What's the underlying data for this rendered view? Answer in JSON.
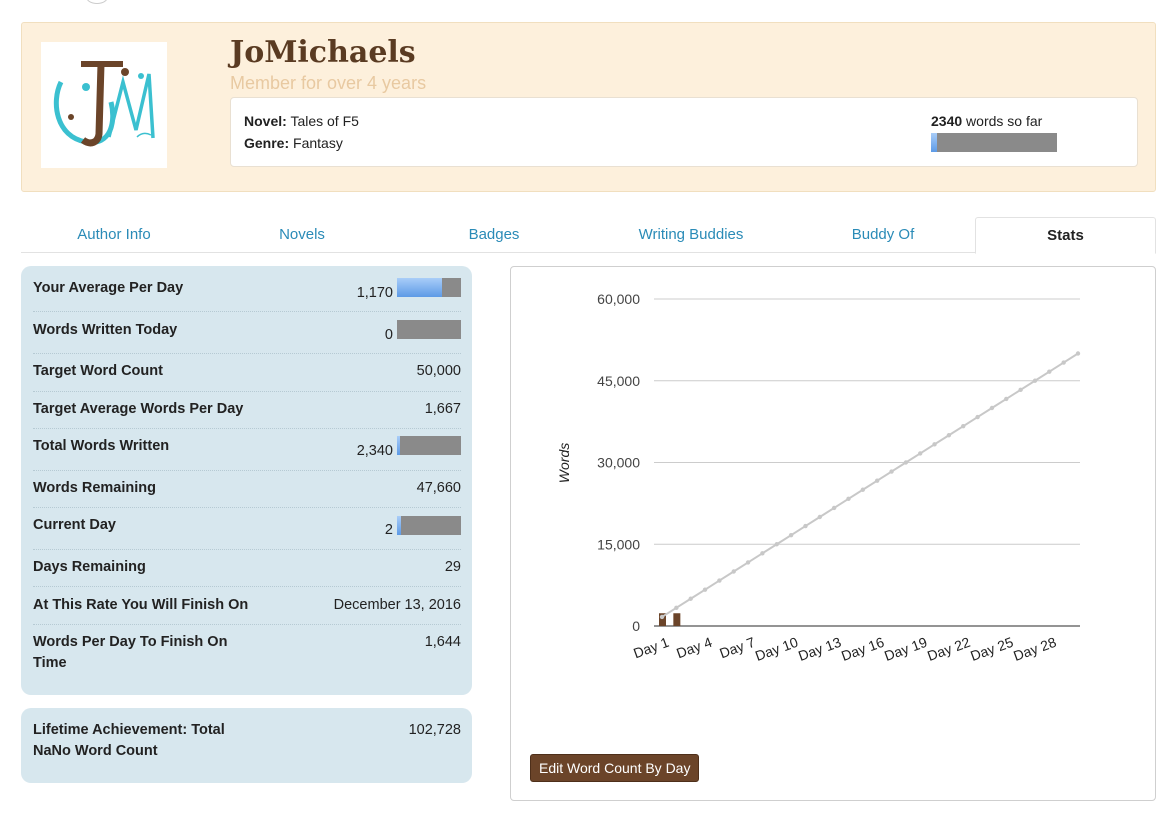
{
  "profile": {
    "username": "JoMichaels",
    "member_since": "Member for over 4 years",
    "novel_label": "Novel:",
    "novel_title": "Tales of F5",
    "genre_label": "Genre:",
    "genre": "Fantasy",
    "words_count": "2340",
    "words_suffix": "words so far",
    "words_progress": 0.047
  },
  "tabs": [
    {
      "label": "Author Info"
    },
    {
      "label": "Novels"
    },
    {
      "label": "Badges"
    },
    {
      "label": "Writing Buddies"
    },
    {
      "label": "Buddy Of"
    },
    {
      "label": "Stats",
      "active": true
    }
  ],
  "stats": [
    {
      "label": "Your Average Per Day",
      "value": "1,170",
      "progress": 0.7
    },
    {
      "label": "Words Written Today",
      "value": "0",
      "progress": 0.0
    },
    {
      "label": "Target Word Count",
      "value": "50,000"
    },
    {
      "label": "Target Average Words Per Day",
      "value": "1,667"
    },
    {
      "label": "Total Words Written",
      "value": "2,340",
      "progress": 0.047
    },
    {
      "label": "Words Remaining",
      "value": "47,660"
    },
    {
      "label": "Current Day",
      "value": "2",
      "progress": 0.067
    },
    {
      "label": "Days Remaining",
      "value": "29"
    },
    {
      "label": "At This Rate You Will Finish On",
      "value": "December 13, 2016"
    },
    {
      "label": "Words Per Day To Finish On Time",
      "value": "1,644"
    }
  ],
  "lifetime": {
    "label": "Lifetime Achievement: Total NaNo Word Count",
    "value": "102,728"
  },
  "edit_button": "Edit Word Count By Day",
  "colors": {
    "accent": "#2a8bb7",
    "brand": "#5a3b22",
    "header_bg": "#fdf0dc",
    "panel_bg": "#d7e7ee",
    "bar_fill": "#5d9ae6"
  },
  "chart_data": {
    "type": "bar",
    "ylabel": "Words",
    "ylim": [
      0,
      60000
    ],
    "yticks": [
      "0",
      "15,000",
      "30,000",
      "45,000",
      "60,000"
    ],
    "ytick_values": [
      0,
      15000,
      30000,
      45000,
      60000
    ],
    "x_tick_labels": [
      "Day 1",
      "Day 4",
      "Day 7",
      "Day 10",
      "Day 13",
      "Day 16",
      "Day 19",
      "Day 22",
      "Day 25",
      "Day 28"
    ],
    "x_tick_days": [
      1,
      4,
      7,
      10,
      13,
      16,
      19,
      22,
      25,
      28
    ],
    "days": 30,
    "series": [
      {
        "type": "bar",
        "values": [
          2340,
          2340,
          0,
          0,
          0,
          0,
          0,
          0,
          0,
          0,
          0,
          0,
          0,
          0,
          0,
          0,
          0,
          0,
          0,
          0,
          0,
          0,
          0,
          0,
          0,
          0,
          0,
          0,
          0,
          0
        ],
        "color": "#6b4429"
      },
      {
        "type": "line",
        "values": [
          1667,
          3333,
          5000,
          6667,
          8333,
          10000,
          11667,
          13333,
          15000,
          16667,
          18333,
          20000,
          21667,
          23333,
          25000,
          26667,
          28333,
          30000,
          31667,
          33333,
          35000,
          36667,
          38333,
          40000,
          41667,
          43333,
          45000,
          46667,
          48333,
          50000
        ],
        "color": "#c8c8c8"
      }
    ]
  }
}
